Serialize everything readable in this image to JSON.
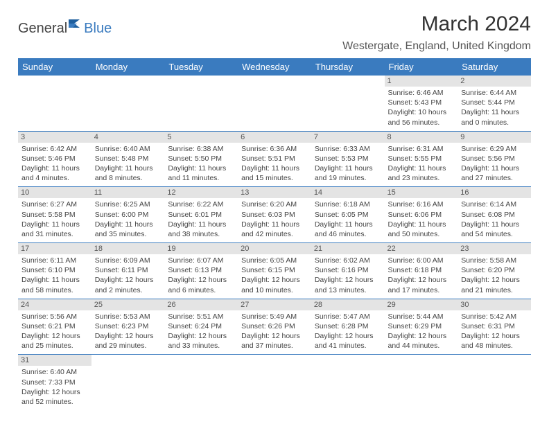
{
  "logo": {
    "text1": "General",
    "text2": "Blue"
  },
  "title": "March 2024",
  "subtitle": "Westergate, England, United Kingdom",
  "colors": {
    "header_bg": "#3a7bbf",
    "header_fg": "#ffffff",
    "daynum_bg": "#e4e4e4",
    "row_border": "#3a7bbf",
    "text": "#444444",
    "title_color": "#333333"
  },
  "weekdays": [
    "Sunday",
    "Monday",
    "Tuesday",
    "Wednesday",
    "Thursday",
    "Friday",
    "Saturday"
  ],
  "first_weekday_index": 5,
  "days": [
    {
      "n": 1,
      "sunrise": "6:46 AM",
      "sunset": "5:43 PM",
      "daylight": "10 hours and 56 minutes."
    },
    {
      "n": 2,
      "sunrise": "6:44 AM",
      "sunset": "5:44 PM",
      "daylight": "11 hours and 0 minutes."
    },
    {
      "n": 3,
      "sunrise": "6:42 AM",
      "sunset": "5:46 PM",
      "daylight": "11 hours and 4 minutes."
    },
    {
      "n": 4,
      "sunrise": "6:40 AM",
      "sunset": "5:48 PM",
      "daylight": "11 hours and 8 minutes."
    },
    {
      "n": 5,
      "sunrise": "6:38 AM",
      "sunset": "5:50 PM",
      "daylight": "11 hours and 11 minutes."
    },
    {
      "n": 6,
      "sunrise": "6:36 AM",
      "sunset": "5:51 PM",
      "daylight": "11 hours and 15 minutes."
    },
    {
      "n": 7,
      "sunrise": "6:33 AM",
      "sunset": "5:53 PM",
      "daylight": "11 hours and 19 minutes."
    },
    {
      "n": 8,
      "sunrise": "6:31 AM",
      "sunset": "5:55 PM",
      "daylight": "11 hours and 23 minutes."
    },
    {
      "n": 9,
      "sunrise": "6:29 AM",
      "sunset": "5:56 PM",
      "daylight": "11 hours and 27 minutes."
    },
    {
      "n": 10,
      "sunrise": "6:27 AM",
      "sunset": "5:58 PM",
      "daylight": "11 hours and 31 minutes."
    },
    {
      "n": 11,
      "sunrise": "6:25 AM",
      "sunset": "6:00 PM",
      "daylight": "11 hours and 35 minutes."
    },
    {
      "n": 12,
      "sunrise": "6:22 AM",
      "sunset": "6:01 PM",
      "daylight": "11 hours and 38 minutes."
    },
    {
      "n": 13,
      "sunrise": "6:20 AM",
      "sunset": "6:03 PM",
      "daylight": "11 hours and 42 minutes."
    },
    {
      "n": 14,
      "sunrise": "6:18 AM",
      "sunset": "6:05 PM",
      "daylight": "11 hours and 46 minutes."
    },
    {
      "n": 15,
      "sunrise": "6:16 AM",
      "sunset": "6:06 PM",
      "daylight": "11 hours and 50 minutes."
    },
    {
      "n": 16,
      "sunrise": "6:14 AM",
      "sunset": "6:08 PM",
      "daylight": "11 hours and 54 minutes."
    },
    {
      "n": 17,
      "sunrise": "6:11 AM",
      "sunset": "6:10 PM",
      "daylight": "11 hours and 58 minutes."
    },
    {
      "n": 18,
      "sunrise": "6:09 AM",
      "sunset": "6:11 PM",
      "daylight": "12 hours and 2 minutes."
    },
    {
      "n": 19,
      "sunrise": "6:07 AM",
      "sunset": "6:13 PM",
      "daylight": "12 hours and 6 minutes."
    },
    {
      "n": 20,
      "sunrise": "6:05 AM",
      "sunset": "6:15 PM",
      "daylight": "12 hours and 10 minutes."
    },
    {
      "n": 21,
      "sunrise": "6:02 AM",
      "sunset": "6:16 PM",
      "daylight": "12 hours and 13 minutes."
    },
    {
      "n": 22,
      "sunrise": "6:00 AM",
      "sunset": "6:18 PM",
      "daylight": "12 hours and 17 minutes."
    },
    {
      "n": 23,
      "sunrise": "5:58 AM",
      "sunset": "6:20 PM",
      "daylight": "12 hours and 21 minutes."
    },
    {
      "n": 24,
      "sunrise": "5:56 AM",
      "sunset": "6:21 PM",
      "daylight": "12 hours and 25 minutes."
    },
    {
      "n": 25,
      "sunrise": "5:53 AM",
      "sunset": "6:23 PM",
      "daylight": "12 hours and 29 minutes."
    },
    {
      "n": 26,
      "sunrise": "5:51 AM",
      "sunset": "6:24 PM",
      "daylight": "12 hours and 33 minutes."
    },
    {
      "n": 27,
      "sunrise": "5:49 AM",
      "sunset": "6:26 PM",
      "daylight": "12 hours and 37 minutes."
    },
    {
      "n": 28,
      "sunrise": "5:47 AM",
      "sunset": "6:28 PM",
      "daylight": "12 hours and 41 minutes."
    },
    {
      "n": 29,
      "sunrise": "5:44 AM",
      "sunset": "6:29 PM",
      "daylight": "12 hours and 44 minutes."
    },
    {
      "n": 30,
      "sunrise": "5:42 AM",
      "sunset": "6:31 PM",
      "daylight": "12 hours and 48 minutes."
    },
    {
      "n": 31,
      "sunrise": "6:40 AM",
      "sunset": "7:33 PM",
      "daylight": "12 hours and 52 minutes."
    }
  ],
  "labels": {
    "sunrise": "Sunrise:",
    "sunset": "Sunset:",
    "daylight": "Daylight:"
  }
}
